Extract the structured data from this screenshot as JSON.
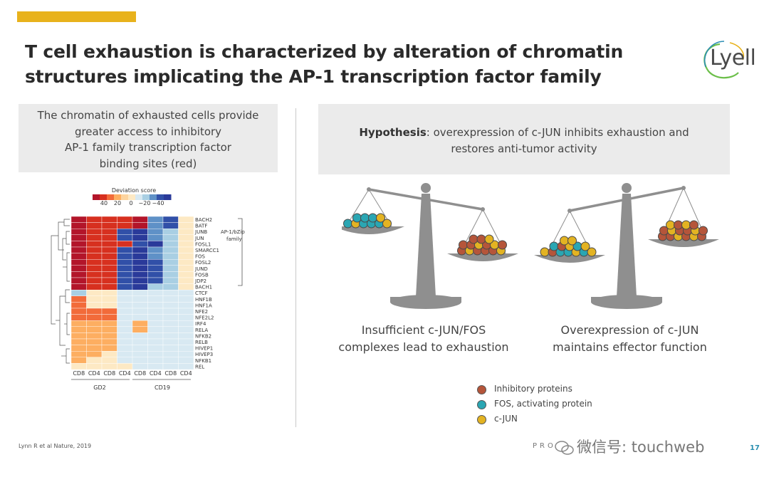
{
  "header": {
    "title_line1": "T cell exhaustion is characterized by alteration of chromatin",
    "title_line2": "structures implicating the AP-1 transcription factor family",
    "logo_text": "Lyell"
  },
  "left_box": {
    "line1": "The chromatin of exhausted cells provide",
    "line2": "greater access to inhibitory",
    "line3": "AP-1 family transcription factor",
    "line4": "binding sites (red)"
  },
  "right_box": {
    "hypothesis_label": "Hypothesis",
    "line1_rest": ": overexpression of c-JUN inhibits exhaustion and",
    "line2": "restores anti-tumor activity"
  },
  "heatmap": {
    "scale_title": "Deviation score",
    "scale_ticks": [
      "40",
      "20",
      "0",
      "−20",
      "−40"
    ],
    "rows": [
      "BACH2",
      "BATF",
      "JUNB",
      "JUN",
      "FOSL1",
      "SMARCC1",
      "FOS",
      "FOSL2",
      "JUND",
      "FOSB",
      "JDP2",
      "BACH1",
      "CTCF",
      "HNF1B",
      "HNF1A",
      "NFE2",
      "NFE2L2",
      "IRF4",
      "RELA",
      "NFKB2",
      "RELB",
      "HIVEP1",
      "HIVEP3",
      "NFKB1",
      "REL"
    ],
    "columns": [
      "CD8",
      "CD4",
      "CD8",
      "CD4",
      "CD8",
      "CD4",
      "CD8",
      "CD4"
    ],
    "group_labels": [
      "GD2",
      "CD19"
    ],
    "bracket_label_line1": "AP-1/bZip",
    "bracket_label_line2": "family",
    "colors": {
      "deep_red": "#b3152a",
      "red": "#d7301f",
      "orange": "#f26b3a",
      "light_orange": "#fdae61",
      "peach": "#fdd49e",
      "pale": "#fde9c4",
      "pale_blue": "#d8e9f2",
      "light_blue": "#a9cfe3",
      "mid_blue": "#5f91c7",
      "blue": "#3150a8",
      "dark_blue": "#2a3a9a"
    }
  },
  "scales": {
    "left_caption_line1": "Insufficient c-JUN/FOS",
    "left_caption_line2": "complexes lead to exhaustion",
    "right_caption_line1": "Overexpression of c-JUN",
    "right_caption_line2": "maintains effector function",
    "colors": {
      "inhibitory": "#b5553a",
      "fos": "#2aa6b3",
      "cjun": "#e3b322",
      "scale": "#8f8f8f"
    }
  },
  "legend": {
    "items": [
      {
        "label": "Inhibitory proteins",
        "color": "#b5553a"
      },
      {
        "label": "FOS, activating protein",
        "color": "#2aa6b3"
      },
      {
        "label": "c-JUN",
        "color": "#e3b322"
      }
    ]
  },
  "footer": {
    "citation": "Lynn R et al Nature, 2019",
    "pro_text": "PRO",
    "watermark": "微信号: touchweb",
    "page_number": "17"
  },
  "accent_color": "#e8b21c"
}
